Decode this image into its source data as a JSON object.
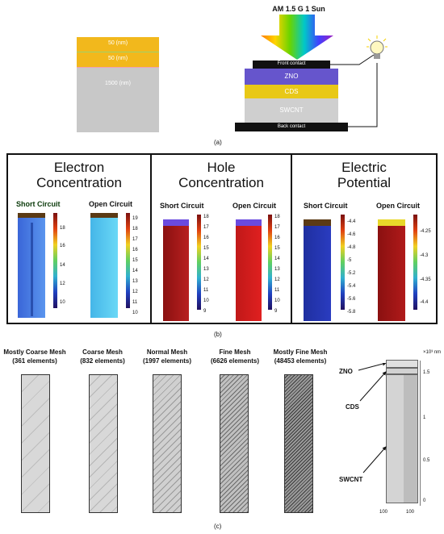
{
  "part_a": {
    "layer_top_label": "50 (nm)",
    "layer_mid_label": "50 (nm)",
    "layer_bottom_label": "1500 (nm)",
    "sun_label": "AM 1.5 G 1 Sun",
    "front_contact": "Front contact",
    "zno": "ZNO",
    "cds": "CDS",
    "swcnt": "SWCNT",
    "back_contact": "Back contact",
    "caption": "(a)"
  },
  "part_b": {
    "electron": {
      "title_l1": "Electron",
      "title_l2": "Concentration",
      "short": "Short Circuit",
      "open": "Open Circuit",
      "ticks_short": [
        "18",
        "16",
        "14",
        "12",
        "10"
      ],
      "ticks_open": [
        "19",
        "18",
        "17",
        "16",
        "15",
        "14",
        "13",
        "12",
        "11",
        "10"
      ]
    },
    "hole": {
      "title_l1": "Hole",
      "title_l2": "Concentration",
      "short": "Short Circuit",
      "open": "Open Circuit",
      "ticks_short": [
        "18",
        "17",
        "16",
        "15",
        "14",
        "13",
        "12",
        "11",
        "10",
        "9"
      ],
      "ticks_open": [
        "18",
        "17",
        "16",
        "15",
        "14",
        "13",
        "12",
        "11",
        "10",
        "9"
      ]
    },
    "potential": {
      "title_l1": "Electric",
      "title_l2": "Potential",
      "short": "Short Circuit",
      "open": "Open Circuit",
      "ticks_short": [
        "-4.4",
        "-4.6",
        "-4.8",
        "-5",
        "-5.2",
        "-5.4",
        "-5.6",
        "-5.8"
      ],
      "ticks_open": [
        "-4.25",
        "-4.3",
        "-4.35",
        "-4.4"
      ]
    },
    "caption": "(b)"
  },
  "part_c": {
    "meshes": [
      {
        "name": "Mostly Coarse Mesh",
        "count": "(361 elements)"
      },
      {
        "name": "Coarse Mesh",
        "count": "(832 elements)"
      },
      {
        "name": "Normal Mesh",
        "count": "(1997 elements)"
      },
      {
        "name": "Fine Mesh",
        "count": "(6626 elements)"
      },
      {
        "name": "Mostly Fine Mesh",
        "count": "(48453 elements)"
      }
    ],
    "axis_unit": "×10³ nm",
    "axis_ticks": [
      "1.5",
      "1",
      "0.5",
      "0"
    ],
    "bottom_ticks": [
      "100",
      "100"
    ],
    "label_zno": "ZNO",
    "label_cds": "CDS",
    "label_swcnt": "SWCNT",
    "caption": "(c)"
  },
  "colors": {
    "gold": "#f2b81c",
    "gray": "#c8c8c8",
    "zno": "#6655cc",
    "cds": "#e8c817",
    "swcnt": "#cfcfcf",
    "contact": "#111111"
  }
}
